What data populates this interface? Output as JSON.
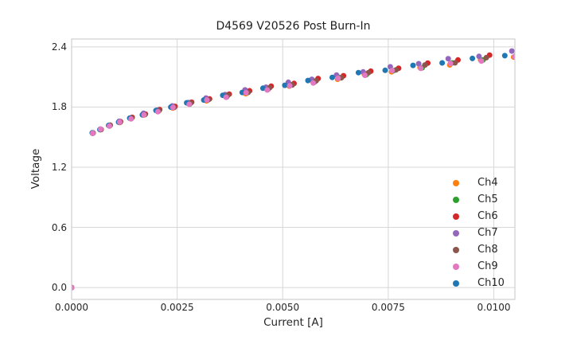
{
  "figure": {
    "title": "D4569 V20526 Post Burn-In"
  },
  "styles": {
    "background": "#ffffff",
    "grid_color": "#d7d7d7",
    "spine_color": "#cfcfcf",
    "text_color": "#262626"
  },
  "chart_data": {
    "type": "scatter",
    "title": "D4569 V20526 Post Burn-In",
    "xlabel": "Current [A]",
    "ylabel": "Voltage",
    "xlim": [
      0.0,
      0.0105
    ],
    "ylim": [
      -0.118,
      2.478
    ],
    "grid": true,
    "legend_position": "lower right",
    "marker_diameter_px": 7,
    "xticks": {
      "values": [
        0.0,
        0.0025,
        0.005,
        0.0075,
        0.01
      ],
      "labels": [
        "0.0000",
        "0.0025",
        "0.0050",
        "0.0075",
        "0.0100"
      ]
    },
    "yticks": {
      "values": [
        0.0,
        0.6,
        1.2,
        1.8,
        2.4
      ],
      "labels": [
        "0.0",
        "0.6",
        "1.2",
        "1.8",
        "2.4"
      ]
    },
    "render_order": [
      0,
      1,
      2,
      3,
      4,
      6,
      5
    ],
    "series": [
      {
        "name": "Ch4",
        "color": "#ff7f0e",
        "points": [
          [
            0.0,
            0.0
          ],
          [
            0.000498,
            1.542
          ],
          [
            0.000683,
            1.574
          ],
          [
            0.000894,
            1.613
          ],
          [
            0.001135,
            1.645
          ],
          [
            0.001404,
            1.687
          ],
          [
            0.00171,
            1.72
          ],
          [
            0.00204,
            1.762
          ],
          [
            0.002396,
            1.79
          ],
          [
            0.002781,
            1.834
          ],
          [
            0.003196,
            1.862
          ],
          [
            0.003652,
            1.903
          ],
          [
            0.004124,
            1.933
          ],
          [
            0.004625,
            1.978
          ],
          [
            0.005155,
            2.009
          ],
          [
            0.005713,
            2.054
          ],
          [
            0.0063,
            2.077
          ],
          [
            0.006933,
            2.126
          ],
          [
            0.007579,
            2.151
          ],
          [
            0.008253,
            2.193
          ],
          [
            0.008956,
            2.22
          ],
          [
            0.009688,
            2.269
          ],
          [
            0.01047,
            2.298
          ]
        ]
      },
      {
        "name": "Ch5",
        "color": "#2ca02c",
        "points": [
          [
            0.0,
            0.0
          ],
          [
            0.000501,
            1.538
          ],
          [
            0.000687,
            1.577
          ],
          [
            0.0009,
            1.61
          ],
          [
            0.001142,
            1.652
          ],
          [
            0.001413,
            1.685
          ],
          [
            0.00172,
            1.728
          ],
          [
            0.002052,
            1.756
          ],
          [
            0.002411,
            1.8
          ],
          [
            0.002798,
            1.829
          ],
          [
            0.003215,
            1.87
          ],
          [
            0.003674,
            1.901
          ],
          [
            0.004149,
            1.946
          ],
          [
            0.004653,
            1.977
          ],
          [
            0.005186,
            2.022
          ],
          [
            0.005747,
            2.047
          ],
          [
            0.006338,
            2.094
          ],
          [
            0.006975,
            2.121
          ],
          [
            0.007624,
            2.163
          ],
          [
            0.008303,
            2.191
          ],
          [
            0.00901,
            2.24
          ],
          [
            0.009746,
            2.269
          ],
          [
            0.010533,
            2.318
          ]
        ]
      },
      {
        "name": "Ch6",
        "color": "#d62728",
        "points": [
          [
            0.0,
            0.0
          ],
          [
            0.000509,
            1.541
          ],
          [
            0.000698,
            1.576
          ],
          [
            0.000914,
            1.619
          ],
          [
            0.00116,
            1.654
          ],
          [
            0.001435,
            1.697
          ],
          [
            0.001747,
            1.73
          ],
          [
            0.002085,
            1.775
          ],
          [
            0.002449,
            1.806
          ],
          [
            0.002843,
            1.848
          ],
          [
            0.003266,
            1.881
          ],
          [
            0.003732,
            1.929
          ],
          [
            0.004215,
            1.962
          ],
          [
            0.004727,
            2.008
          ],
          [
            0.005268,
            2.035
          ],
          [
            0.005838,
            2.084
          ],
          [
            0.006439,
            2.112
          ],
          [
            0.007086,
            2.157
          ],
          [
            0.007746,
            2.187
          ],
          [
            0.008435,
            2.238
          ],
          [
            0.009153,
            2.269
          ],
          [
            0.009901,
            2.318
          ],
          [
            0.010701,
            2.342
          ]
        ]
      },
      {
        "name": "Ch7",
        "color": "#9467bd",
        "points": [
          [
            0.0,
            0.0
          ],
          [
            0.000496,
            1.538
          ],
          [
            0.00068,
            1.58
          ],
          [
            0.000891,
            1.616
          ],
          [
            0.00113,
            1.659
          ],
          [
            0.001399,
            1.691
          ],
          [
            0.001703,
            1.737
          ],
          [
            0.002032,
            1.769
          ],
          [
            0.002387,
            1.811
          ],
          [
            0.00277,
            1.844
          ],
          [
            0.003183,
            1.89
          ],
          [
            0.003637,
            1.924
          ],
          [
            0.004107,
            1.971
          ],
          [
            0.004606,
            1.998
          ],
          [
            0.005134,
            2.047
          ],
          [
            0.00569,
            2.076
          ],
          [
            0.006275,
            2.119
          ],
          [
            0.006905,
            2.15
          ],
          [
            0.007548,
            2.201
          ],
          [
            0.00822,
            2.232
          ],
          [
            0.00892,
            2.282
          ],
          [
            0.009649,
            2.305
          ],
          [
            0.010428,
            2.358
          ]
        ]
      },
      {
        "name": "Ch8",
        "color": "#8c564b",
        "points": [
          [
            0.0,
            0.0
          ],
          [
            0.000505,
            1.542
          ],
          [
            0.000692,
            1.576
          ],
          [
            0.000907,
            1.618
          ],
          [
            0.001151,
            1.649
          ],
          [
            0.001424,
            1.692
          ],
          [
            0.001734,
            1.724
          ],
          [
            0.002069,
            1.764
          ],
          [
            0.00243,
            1.796
          ],
          [
            0.00282,
            1.841
          ],
          [
            0.00324,
            1.873
          ],
          [
            0.003703,
            1.919
          ],
          [
            0.004182,
            1.946
          ],
          [
            0.00469,
            1.992
          ],
          [
            0.005227,
            2.02
          ],
          [
            0.005793,
            2.062
          ],
          [
            0.006389,
            2.091
          ],
          [
            0.00703,
            2.141
          ],
          [
            0.007685,
            2.171
          ],
          [
            0.008369,
            2.219
          ],
          [
            0.009082,
            2.241
          ],
          [
            0.009823,
            2.292
          ],
          [
            0.010617,
            2.317
          ]
        ]
      },
      {
        "name": "Ch9",
        "color": "#e377c2",
        "points": [
          [
            0.0,
            0.0
          ],
          [
            0.000499,
            1.539
          ],
          [
            0.000684,
            1.579
          ],
          [
            0.000896,
            1.61
          ],
          [
            0.001137,
            1.651
          ],
          [
            0.001407,
            1.682
          ],
          [
            0.001713,
            1.722
          ],
          [
            0.002044,
            1.753
          ],
          [
            0.002401,
            1.796
          ],
          [
            0.002787,
            1.828
          ],
          [
            0.003202,
            1.871
          ],
          [
            0.003659,
            1.898
          ],
          [
            0.004132,
            1.943
          ],
          [
            0.004634,
            1.97
          ],
          [
            0.005165,
            2.012
          ],
          [
            0.005724,
            2.04
          ],
          [
            0.006313,
            2.087
          ],
          [
            0.006947,
            2.117
          ],
          [
            0.007594,
            2.164
          ],
          [
            0.00827,
            2.186
          ],
          [
            0.008974,
            2.235
          ],
          [
            0.009707,
            2.258
          ],
          [
            0.010491,
            2.302
          ]
        ]
      },
      {
        "name": "Ch10",
        "color": "#1f77b4",
        "points": [
          [
            0.0,
            0.0
          ],
          [
            0.000488,
            1.543
          ],
          [
            0.000669,
            1.575
          ],
          [
            0.000876,
            1.617
          ],
          [
            0.001112,
            1.649
          ],
          [
            0.001376,
            1.689
          ],
          [
            0.001675,
            1.722
          ],
          [
            0.001999,
            1.766
          ],
          [
            0.002348,
            1.799
          ],
          [
            0.002726,
            1.842
          ],
          [
            0.003132,
            1.87
          ],
          [
            0.003579,
            1.917
          ],
          [
            0.004041,
            1.945
          ],
          [
            0.004532,
            1.987
          ],
          [
            0.005051,
            2.017
          ],
          [
            0.005598,
            2.064
          ],
          [
            0.006174,
            2.095
          ],
          [
            0.006794,
            2.143
          ],
          [
            0.007427,
            2.166
          ],
          [
            0.008088,
            2.215
          ],
          [
            0.008777,
            2.24
          ],
          [
            0.009493,
            2.284
          ],
          [
            0.01026,
            2.312
          ]
        ]
      }
    ]
  }
}
